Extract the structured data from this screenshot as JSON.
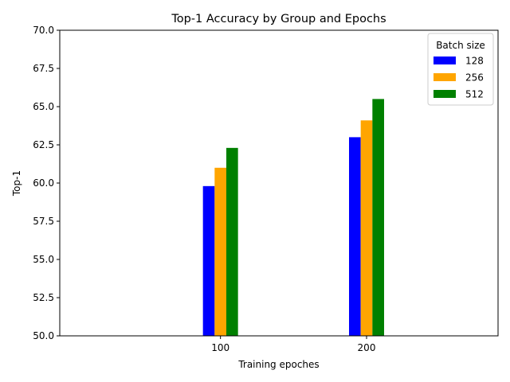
{
  "chart_data": {
    "type": "bar",
    "title": "Top-1 Accuracy by Group and Epochs",
    "xlabel": "Training epoches",
    "ylabel": "Top-1",
    "categories": [
      "100",
      "200"
    ],
    "category_values": [
      100,
      200
    ],
    "xlim": [
      -10,
      290
    ],
    "ylim": [
      50,
      70
    ],
    "yticks": [
      "50.0",
      "52.5",
      "55.0",
      "57.5",
      "60.0",
      "62.5",
      "65.0",
      "67.5",
      "70.0"
    ],
    "grid": false,
    "legend": {
      "title": "Batch size",
      "placement": "top-right"
    },
    "series": [
      {
        "name": "128",
        "color": "#0000ff",
        "values": [
          59.8,
          63.0
        ]
      },
      {
        "name": "256",
        "color": "#ffa500",
        "values": [
          61.0,
          64.1
        ]
      },
      {
        "name": "512",
        "color": "#008000",
        "values": [
          62.3,
          65.5
        ]
      }
    ]
  }
}
